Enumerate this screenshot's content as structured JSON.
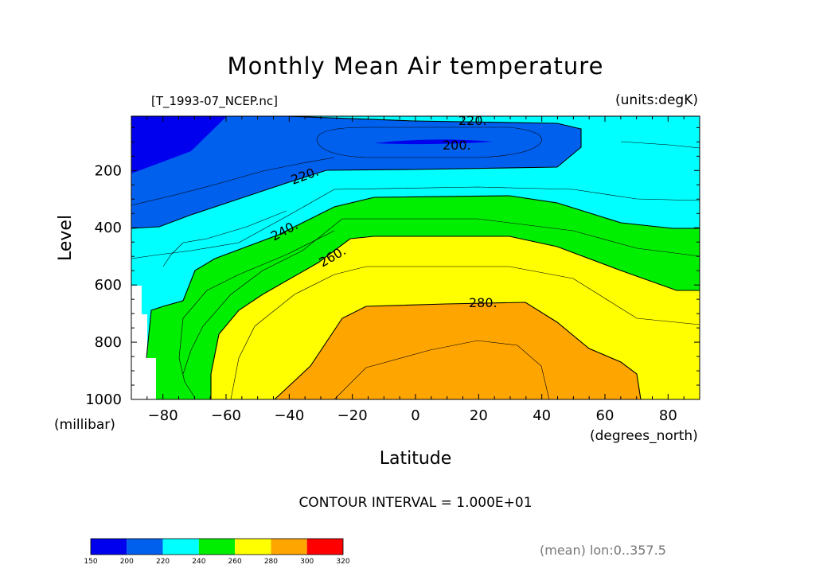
{
  "chart_data": {
    "type": "contour",
    "title": "Monthly Mean Air temperature",
    "source_label": "[T_1993-07_NCEP.nc]",
    "units_label": "(units:degK)",
    "xlabel": "Latitude",
    "x_units": "(degrees_north)",
    "ylabel": "Level",
    "y_units": "(millibar)",
    "xlim": [
      -90,
      90
    ],
    "ylim": [
      1000,
      10
    ],
    "x_ticks": [
      -80,
      -60,
      -40,
      -20,
      0,
      20,
      40,
      60,
      80
    ],
    "y_ticks": [
      200,
      400,
      600,
      800,
      1000
    ],
    "contour_interval_label": "CONTOUR INTERVAL = 1.000E+01",
    "contour_labels": [
      "220.",
      "200.",
      "220.",
      "240.",
      "260.",
      "280."
    ],
    "footer": "(mean) lon:0..357.5",
    "colorbar": {
      "ticks": [
        150,
        200,
        220,
        240,
        260,
        280,
        300,
        320
      ],
      "colors": [
        "#0000ee",
        "#0060ee",
        "#00ffff",
        "#00ee00",
        "#ffff00",
        "#ffa500",
        "#ff0000"
      ]
    }
  }
}
